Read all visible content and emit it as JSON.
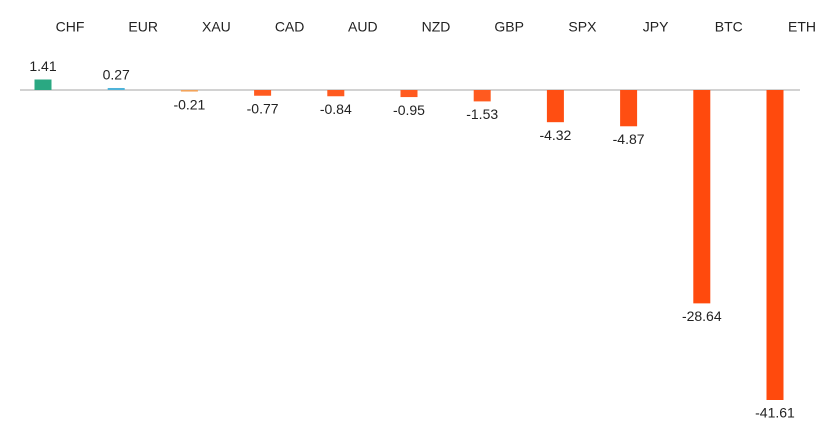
{
  "chart_data": {
    "type": "bar",
    "categories": [
      "CHF",
      "EUR",
      "XAU",
      "CAD",
      "AUD",
      "NZD",
      "GBP",
      "SPX",
      "JPY",
      "BTC",
      "ETH"
    ],
    "values": [
      1.41,
      0.27,
      -0.21,
      -0.77,
      -0.84,
      -0.95,
      -1.53,
      -4.32,
      -4.87,
      -28.64,
      -41.61
    ],
    "colors": [
      "#2aa882",
      "#4fb3d9",
      "#f2a35a",
      "#ff5a1f",
      "#ff5a1f",
      "#ff5a1f",
      "#ff5a1f",
      "#ff4e12",
      "#ff4e12",
      "#ff4a0d",
      "#ff4a0d"
    ]
  }
}
